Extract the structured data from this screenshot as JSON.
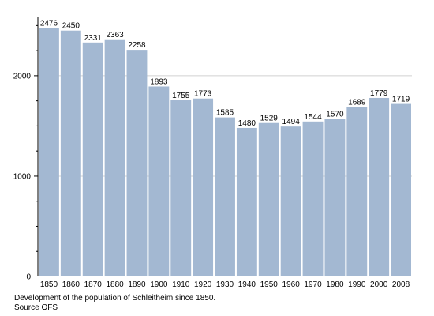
{
  "chart_data": {
    "type": "bar",
    "title": "",
    "xlabel": "",
    "ylabel": "",
    "categories": [
      "1850",
      "1860",
      "1870",
      "1880",
      "1890",
      "1900",
      "1910",
      "1920",
      "1930",
      "1940",
      "1950",
      "1960",
      "1970",
      "1980",
      "1990",
      "2000",
      "2008"
    ],
    "values": [
      2476,
      2450,
      2331,
      2363,
      2258,
      1893,
      1755,
      1773,
      1585,
      1480,
      1529,
      1494,
      1544,
      1570,
      1689,
      1779,
      1719
    ],
    "ylim": [
      0,
      2550
    ],
    "yticks": [
      0,
      1000,
      2000
    ],
    "grid": true,
    "bar_color": "#a3b8d2",
    "grid_color": "#d0d0d0",
    "data_labels": true
  },
  "caption": {
    "line1": "Development of the population of Schleitheim since 1850.",
    "line2": "Source OFS"
  }
}
